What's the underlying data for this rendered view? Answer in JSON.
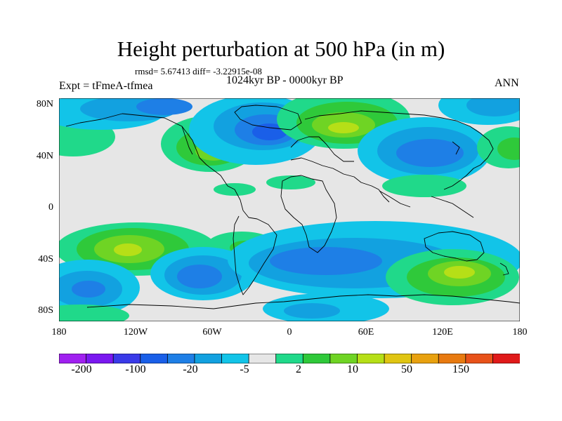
{
  "figure": {
    "title": "Height perturbation at 500 hPa (in m)",
    "stats_line": "rmsd= 5.67413 diff= -3.22915e-08",
    "period": "1024kyr BP - 0000kyr BP",
    "experiment": "Expt = tFmeA-tfmea",
    "season": "ANN"
  },
  "axes": {
    "lat_labels": [
      "80N",
      "40N",
      "0",
      "40S",
      "80S"
    ],
    "lon_labels": [
      "180",
      "120W",
      "60W",
      "0",
      "60E",
      "120E",
      "180"
    ]
  },
  "colorbar": {
    "labels": [
      "-200",
      "-100",
      "-20",
      "-5",
      "2",
      "10",
      "50",
      "150"
    ],
    "colors": [
      "#a020f0",
      "#7a18f0",
      "#3a3ae8",
      "#1a5fe8",
      "#1e7fe6",
      "#12a1e0",
      "#12c4e8",
      "#e6e6e6",
      "#20d98a",
      "#2fc93a",
      "#6fd424",
      "#b6df17",
      "#e0c512",
      "#e8a10f",
      "#e87a10",
      "#e8521a",
      "#e01a1a"
    ]
  },
  "palette": {
    "bg": "#e6e6e6",
    "c_m100": "#1a5fe8",
    "c_m20": "#1e7fe6",
    "c_m5": "#12a1e0",
    "c_m2": "#12c4e8",
    "c_2": "#20d98a",
    "c_5": "#2fc93a",
    "c_10": "#6fd424",
    "c_20": "#b6df17",
    "c_50": "#e0c512"
  }
}
